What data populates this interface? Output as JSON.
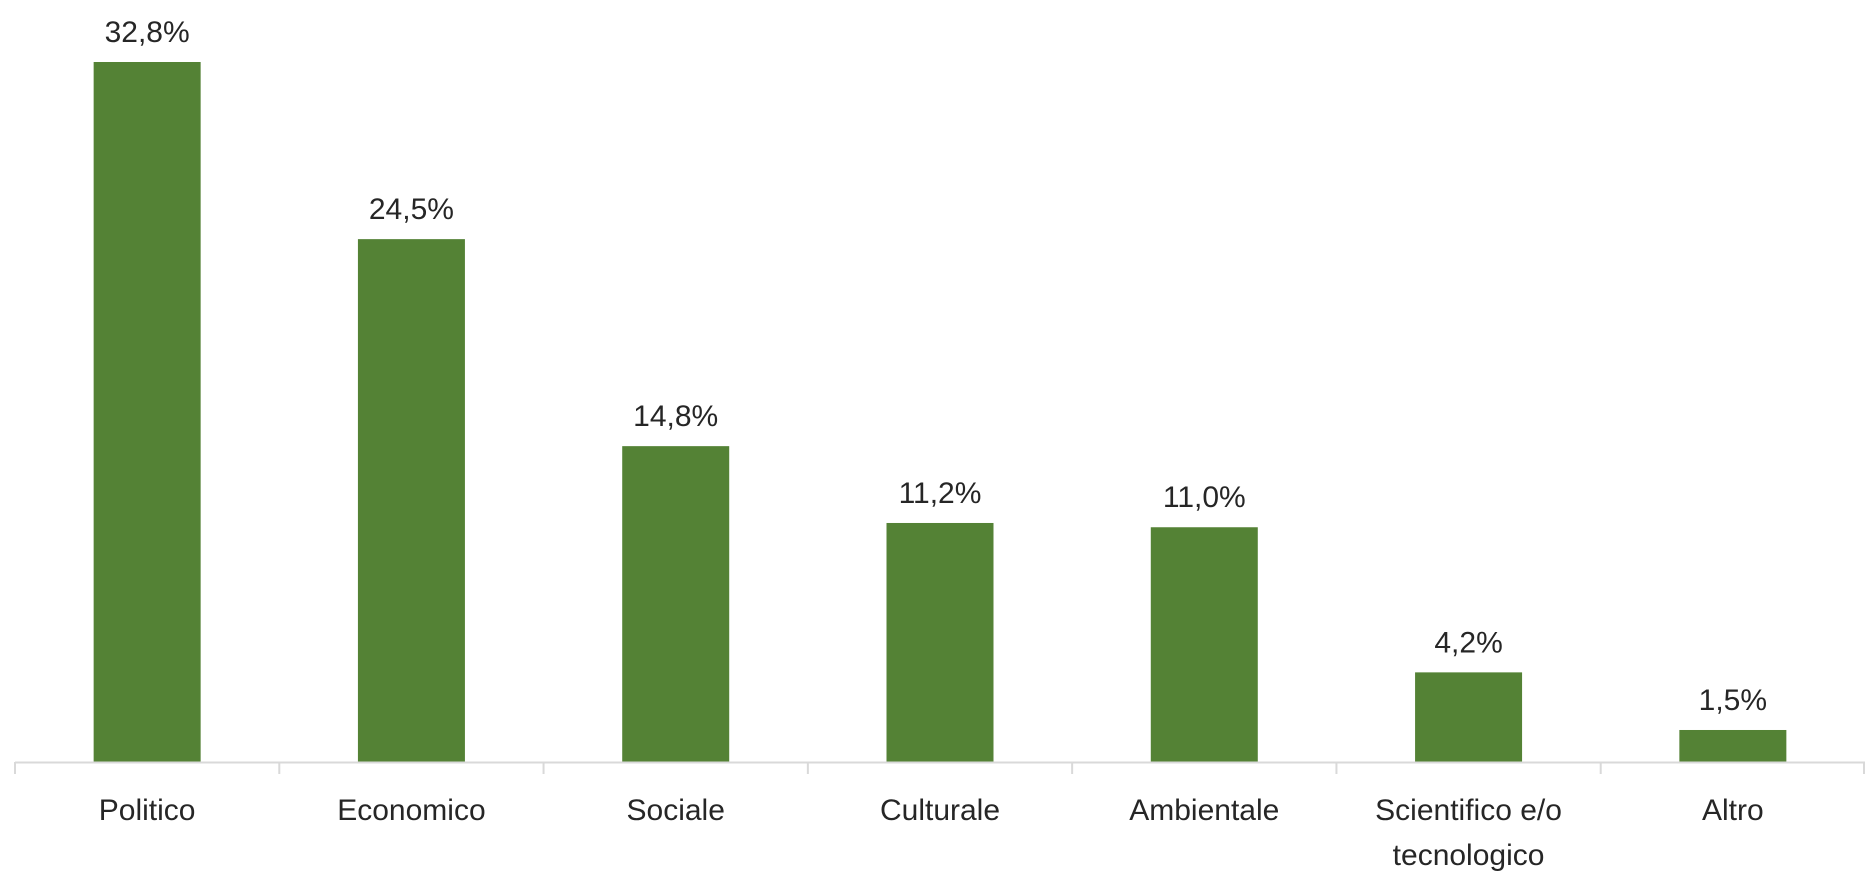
{
  "chart_data": {
    "type": "bar",
    "categories": [
      "Politico",
      "Economico",
      "Sociale",
      "Culturale",
      "Ambientale",
      "Scientifico e/o tecnologico",
      "Altro"
    ],
    "category_lines": [
      [
        "Politico"
      ],
      [
        "Economico"
      ],
      [
        "Sociale"
      ],
      [
        "Culturale"
      ],
      [
        "Ambientale"
      ],
      [
        "Scientifico e/o",
        "tecnologico"
      ],
      [
        "Altro"
      ]
    ],
    "values": [
      32.8,
      24.5,
      14.8,
      11.2,
      11.0,
      4.2,
      1.5
    ],
    "data_labels": [
      "32,8%",
      "24,5%",
      "14,8%",
      "11,2%",
      "11,0%",
      "4,2%",
      "1,5%"
    ],
    "title": "",
    "xlabel": "",
    "ylabel": "",
    "ylim": [
      0,
      32.8
    ],
    "grid": false,
    "legend": "none",
    "bar_color": "#548235",
    "axis_color": "#d9d9d9"
  }
}
